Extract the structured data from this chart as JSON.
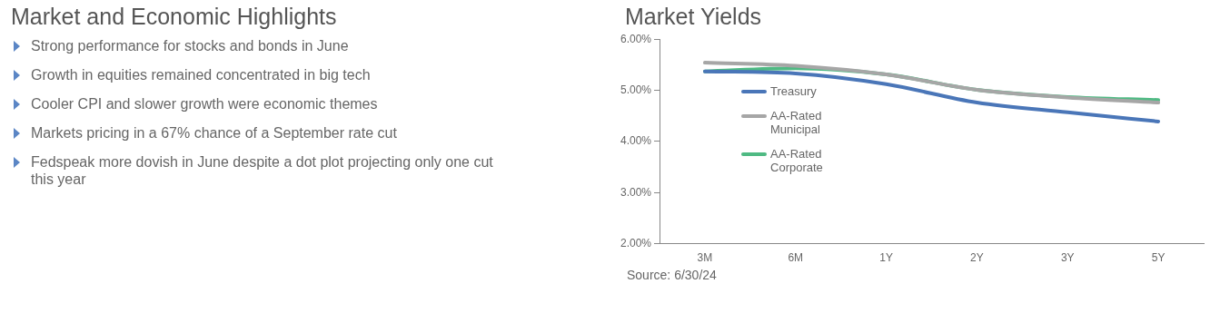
{
  "chart_data": [
    {
      "type": "other",
      "title": "Market and Economic Highlights",
      "annotations": [
        "Strong performance for stocks and bonds in June",
        "Growth in equities remained concentrated in big tech",
        "Cooler CPI and slower growth were economic themes",
        "Markets pricing in a 67% chance of a September rate cut",
        "Fedspeak more dovish in June despite a dot plot projecting only one cut this year"
      ]
    },
    {
      "type": "line",
      "title": "Market Yields",
      "categories": [
        "3M",
        "6M",
        "1Y",
        "2Y",
        "3Y",
        "5Y"
      ],
      "series": [
        {
          "name": "Treasury",
          "color": "#4a76b8",
          "values": [
            5.37,
            5.33,
            5.12,
            4.76,
            4.57,
            4.39
          ]
        },
        {
          "name": "AA-Rated Municipal",
          "color": "#a6a6a6",
          "values": [
            5.54,
            5.48,
            5.31,
            5.01,
            4.86,
            4.76
          ]
        },
        {
          "name": "AA-Rated Corporate",
          "color": "#4fba83",
          "values": [
            5.37,
            5.43,
            5.31,
            5.01,
            4.87,
            4.81
          ]
        }
      ],
      "ylim": [
        2,
        6
      ],
      "yticks": [
        {
          "value": 2,
          "label": "2.00%"
        },
        {
          "value": 3,
          "label": "3.00%"
        },
        {
          "value": 4,
          "label": "4.00%"
        },
        {
          "value": 5,
          "label": "5.00%"
        },
        {
          "value": 6,
          "label": "6.00%"
        }
      ],
      "grid": false,
      "legend": "left",
      "marker": "none",
      "line_style": "solid",
      "annotations": [
        "Source: 6/30/24"
      ]
    }
  ]
}
